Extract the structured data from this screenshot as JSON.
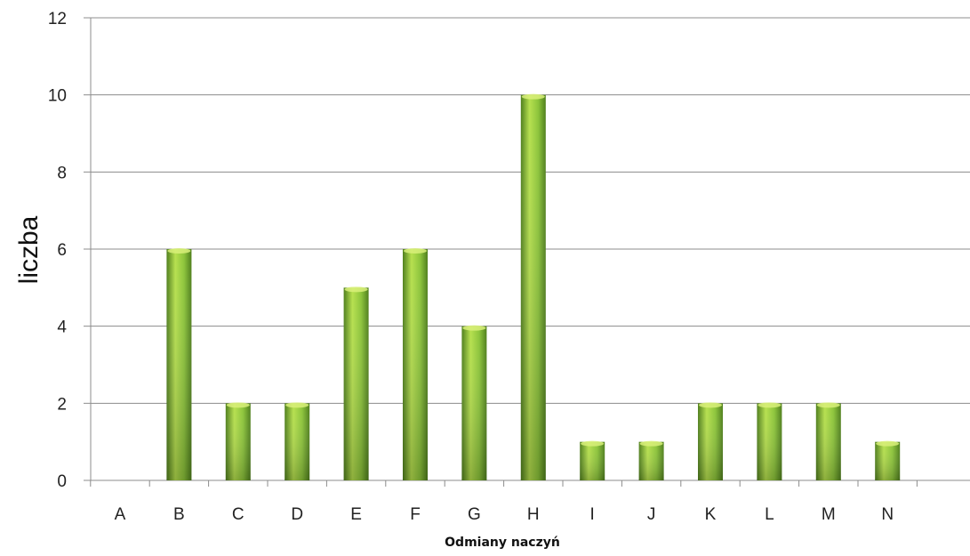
{
  "chart_data": {
    "type": "bar",
    "title": "",
    "xlabel": "Odmiany naczyń",
    "ylabel": "liczba",
    "categories": [
      "A",
      "B",
      "C",
      "D",
      "E",
      "F",
      "G",
      "H",
      "I",
      "J",
      "K",
      "L",
      "M",
      "N"
    ],
    "values": [
      0,
      6,
      2,
      2,
      5,
      6,
      4,
      10,
      1,
      1,
      2,
      2,
      2,
      1
    ],
    "ylim": [
      0,
      12
    ],
    "yticks": [
      0,
      2,
      4,
      6,
      8,
      10,
      12
    ],
    "grid": true,
    "legend": "none"
  },
  "colors": {
    "bar_light": "#b6e04e",
    "bar_mid": "#8cc43a",
    "bar_dark": "#4f7f1c",
    "bar_top": "#d9f07a",
    "grid": "#8c8c8c",
    "axis": "#8c8c8c"
  }
}
